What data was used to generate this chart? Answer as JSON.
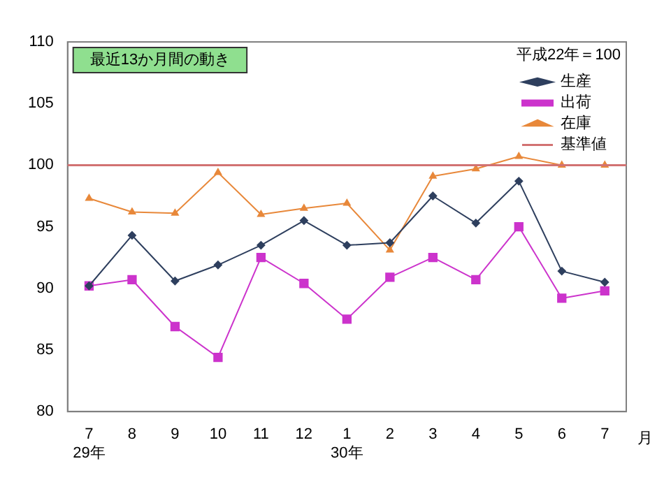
{
  "chart_data": {
    "type": "line",
    "xlabel": "月",
    "legend_title": "平成22年＝100",
    "categories": [
      "7\n29年",
      "8",
      "9",
      "10",
      "11",
      "12",
      "1\n30年",
      "2",
      "3",
      "4",
      "5",
      "6",
      "7"
    ],
    "series": [
      {
        "name": "生産",
        "color": "#2e3f5e",
        "marker": "diamond",
        "values": [
          90.2,
          94.3,
          90.6,
          91.9,
          93.5,
          95.5,
          93.5,
          93.7,
          97.5,
          95.3,
          98.7,
          91.4,
          90.5
        ]
      },
      {
        "name": "出荷",
        "color": "#cc33cc",
        "marker": "square",
        "values": [
          90.2,
          90.7,
          86.9,
          84.4,
          92.5,
          90.4,
          87.5,
          90.9,
          92.5,
          90.7,
          95.0,
          89.2,
          89.8
        ]
      },
      {
        "name": "在庫",
        "color": "#e8883a",
        "marker": "triangle",
        "values": [
          97.3,
          96.2,
          96.1,
          99.4,
          96.0,
          96.5,
          96.9,
          93.1,
          99.1,
          99.7,
          100.7,
          100.0,
          100.0
        ]
      }
    ],
    "ref_lines": [
      {
        "axis": "y",
        "value": 100,
        "label": "基準値",
        "color": "#d27272"
      }
    ],
    "annotations": [
      "最近13か月間の動き"
    ],
    "ylim": [
      80,
      110
    ],
    "yticks": [
      80,
      85,
      90,
      95,
      100,
      105,
      110
    ],
    "grid": false,
    "legend": "top right"
  }
}
